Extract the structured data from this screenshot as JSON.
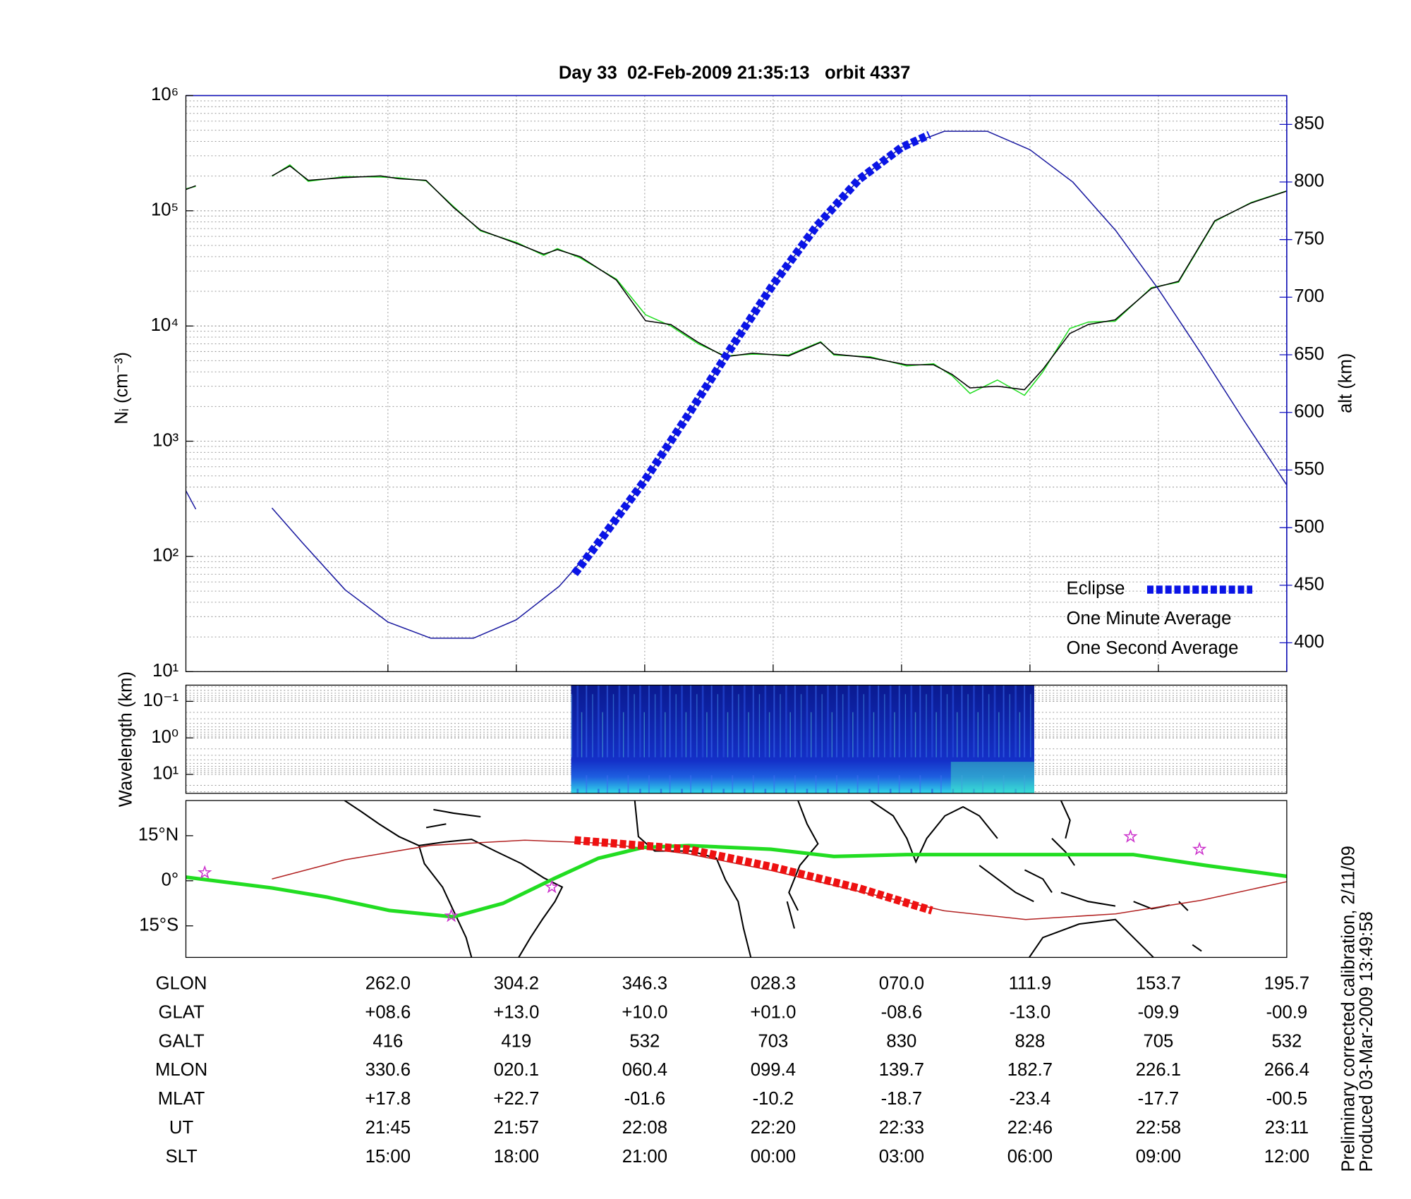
{
  "chart_data": [
    {
      "type": "line",
      "title": "Day 33  02-Feb-2009 21:35:13   orbit 4337",
      "ylabel": "Nᵢ (cm⁻³)",
      "y2label": "alt (km)",
      "y2color": "#1010c0",
      "log_y": true,
      "grid": true,
      "minor_grid": true,
      "legend": "lower right",
      "ylim": [
        10,
        1000000
      ],
      "yticks": [
        {
          "value": 10,
          "label": "10¹"
        },
        {
          "value": 100,
          "label": "10²"
        },
        {
          "value": 1000,
          "label": "10³"
        },
        {
          "value": 10000,
          "label": "10⁴"
        },
        {
          "value": 100000,
          "label": "10⁵"
        },
        {
          "value": 1000000,
          "label": "10⁶"
        }
      ],
      "y2lim": [
        375,
        875
      ],
      "y2ticks": [
        400,
        450,
        500,
        550,
        600,
        650,
        700,
        750,
        800,
        850
      ],
      "xlim": [
        10.28,
        36
      ],
      "xlabel": "SLT",
      "xticks": [
        {
          "value": 15,
          "label": "15:00"
        },
        {
          "value": 18,
          "label": "18:00"
        },
        {
          "value": 21,
          "label": "21:00"
        },
        {
          "value": 24,
          "label": "00:00"
        },
        {
          "value": 27,
          "label": "03:00"
        },
        {
          "value": 30,
          "label": "06:00"
        },
        {
          "value": 33,
          "label": "09:00"
        },
        {
          "value": 36,
          "label": "12:00"
        }
      ],
      "tick_table": [
        {
          "label": "GLON",
          "values": [
            "262.0",
            "304.2",
            "346.3",
            "028.3",
            "070.0",
            "111.9",
            "153.7",
            "195.7"
          ]
        },
        {
          "label": "GLAT",
          "values": [
            "+08.6",
            "+13.0",
            "+10.0",
            "+01.0",
            "-08.6",
            "-13.0",
            "-09.9",
            "-00.9"
          ]
        },
        {
          "label": "GALT",
          "values": [
            "416",
            "419",
            "532",
            "703",
            "830",
            "828",
            "705",
            "532"
          ]
        },
        {
          "label": "MLON",
          "values": [
            "330.6",
            "020.1",
            "060.4",
            "099.4",
            "139.7",
            "182.7",
            "226.1",
            "266.4"
          ]
        },
        {
          "label": "MLAT",
          "values": [
            "+17.8",
            "+22.7",
            "-01.6",
            "-10.2",
            "-18.7",
            "-23.4",
            "-17.7",
            "-00.5"
          ]
        },
        {
          "label": "UT",
          "values": [
            "21:45",
            "21:57",
            "22:08",
            "22:20",
            "22:33",
            "22:46",
            "22:58",
            "23:11"
          ]
        }
      ],
      "x": [
        10.28,
        10.51,
        null,
        12.29,
        12.71,
        13.14,
        13.98,
        14.83,
        15.25,
        15.89,
        16.53,
        17.16,
        18.01,
        18.64,
        18.96,
        19.49,
        20.34,
        21.02,
        21.61,
        22.25,
        22.88,
        23.52,
        24.36,
        25.11,
        25.42,
        26.27,
        27.12,
        27.75,
        28.18,
        28.6,
        29.24,
        29.87,
        30.3,
        30.93,
        31.36,
        31.99,
        32.84,
        33.47,
        34.32,
        35.17,
        36
      ],
      "series": [
        {
          "name": "One Second Average",
          "color": "#22dd22",
          "values": [
            155000,
            163000,
            null,
            199000,
            250000,
            180000,
            198000,
            196000,
            193000,
            182000,
            109000,
            67000,
            53000,
            41000,
            47000,
            39000,
            25500,
            12500,
            10000,
            7000,
            5500,
            5700,
            5600,
            7300,
            5600,
            5400,
            4500,
            4700,
            3700,
            2600,
            3400,
            2500,
            4000,
            9500,
            10800,
            11000,
            21500,
            24000,
            81000,
            118000,
            149000
          ]
        },
        {
          "name": "One Minute Average",
          "color": "#000000",
          "values": [
            153000,
            165000,
            null,
            201000,
            245000,
            184000,
            194000,
            201000,
            190000,
            184000,
            107000,
            68000,
            52000,
            42000,
            46000,
            40000,
            25000,
            11100,
            10300,
            7200,
            5400,
            5800,
            5500,
            7200,
            5700,
            5300,
            4600,
            4600,
            3800,
            2900,
            3000,
            2800,
            4200,
            8600,
            10300,
            11300,
            21200,
            24400,
            82000,
            117000,
            148000
          ]
        },
        {
          "color": "#1a1aa0",
          "axis": "y2",
          "x": [
            10.28,
            10.51,
            null,
            12.29,
            13,
            14,
            15,
            16,
            17,
            18,
            19,
            20,
            21,
            22,
            23,
            24,
            25,
            26,
            27,
            28,
            29,
            30,
            31,
            32,
            33,
            34,
            35,
            36
          ],
          "values": [
            532,
            516,
            null,
            517,
            487,
            446,
            418,
            404,
            404,
            420,
            449,
            491,
            541,
            597,
            655,
            711,
            761,
            802,
            830,
            844,
            844,
            828,
            800,
            758,
            707,
            651,
            593,
            537
          ]
        },
        {
          "name": "Eclipse",
          "color": "#0a14e6",
          "axis": "y2",
          "style": "thick-dashed",
          "x": [
            19.36,
            20,
            21,
            22,
            23,
            24,
            25,
            26,
            27,
            27.65
          ],
          "values": [
            460,
            491,
            541,
            597,
            655,
            711,
            761,
            802,
            830,
            841
          ]
        }
      ]
    },
    {
      "type": "spectrogram",
      "ylabel": "Wavelength (km)",
      "log_y": true,
      "minor_grid": true,
      "ylim": [
        33,
        0.036
      ],
      "yticks": [
        {
          "value": 0.1,
          "label": "10⁻¹"
        },
        {
          "value": 1,
          "label": "10⁰"
        },
        {
          "value": 10,
          "label": "10¹"
        }
      ],
      "x_range": [
        19.28,
        30.1
      ]
    },
    {
      "type": "map",
      "ylim": [
        -25.5,
        26.7
      ],
      "yticks": [
        {
          "value": 15,
          "label": "15°N"
        },
        {
          "value": 0,
          "label": "0°"
        },
        {
          "value": -15,
          "label": "15°S"
        }
      ],
      "series": [
        {
          "color": "#b22222",
          "x": [
            12.29,
            14,
            16,
            18.2,
            20,
            22,
            24,
            26,
            28,
            29.9,
            32,
            34,
            36
          ],
          "values": [
            0.6,
            7,
            11.8,
            13.5,
            12.5,
            9,
            3.3,
            -3.5,
            -10,
            -12.9,
            -11,
            -6.5,
            -0.3
          ]
        },
        {
          "color": "#22dd22",
          "style": "thick",
          "x": [
            10.28,
            12.29,
            13.56,
            15.04,
            16.53,
            17.69,
            18.86,
            19.92,
            20.97,
            22.03,
            23.94,
            25.42,
            27.12,
            29.24,
            32.42,
            34.11,
            36
          ],
          "values": [
            1.2,
            -2.4,
            -5.4,
            -9.9,
            -12,
            -7.5,
            0.6,
            7.5,
            11.1,
            11.7,
            10.5,
            8.1,
            8.7,
            8.7,
            8.7,
            5.1,
            1.5
          ]
        },
        {
          "color": "#ee1111",
          "style": "thick-dashed",
          "x": [
            19.36,
            22,
            24,
            26,
            27.71
          ],
          "values": [
            13.5,
            10.5,
            4.5,
            -2.5,
            -9.9
          ]
        }
      ],
      "stars": {
        "color": "#cc33cc",
        "x": [
          10.72,
          16.48,
          18.83,
          32.35,
          33.96
        ],
        "values": [
          2.7,
          -11.7,
          -2.1,
          14.7,
          10.5
        ]
      }
    }
  ],
  "footer": [
    "Preliminary corrected calibration, 2/11/09",
    "Produced 03-Mar-2009 13:49:58"
  ]
}
